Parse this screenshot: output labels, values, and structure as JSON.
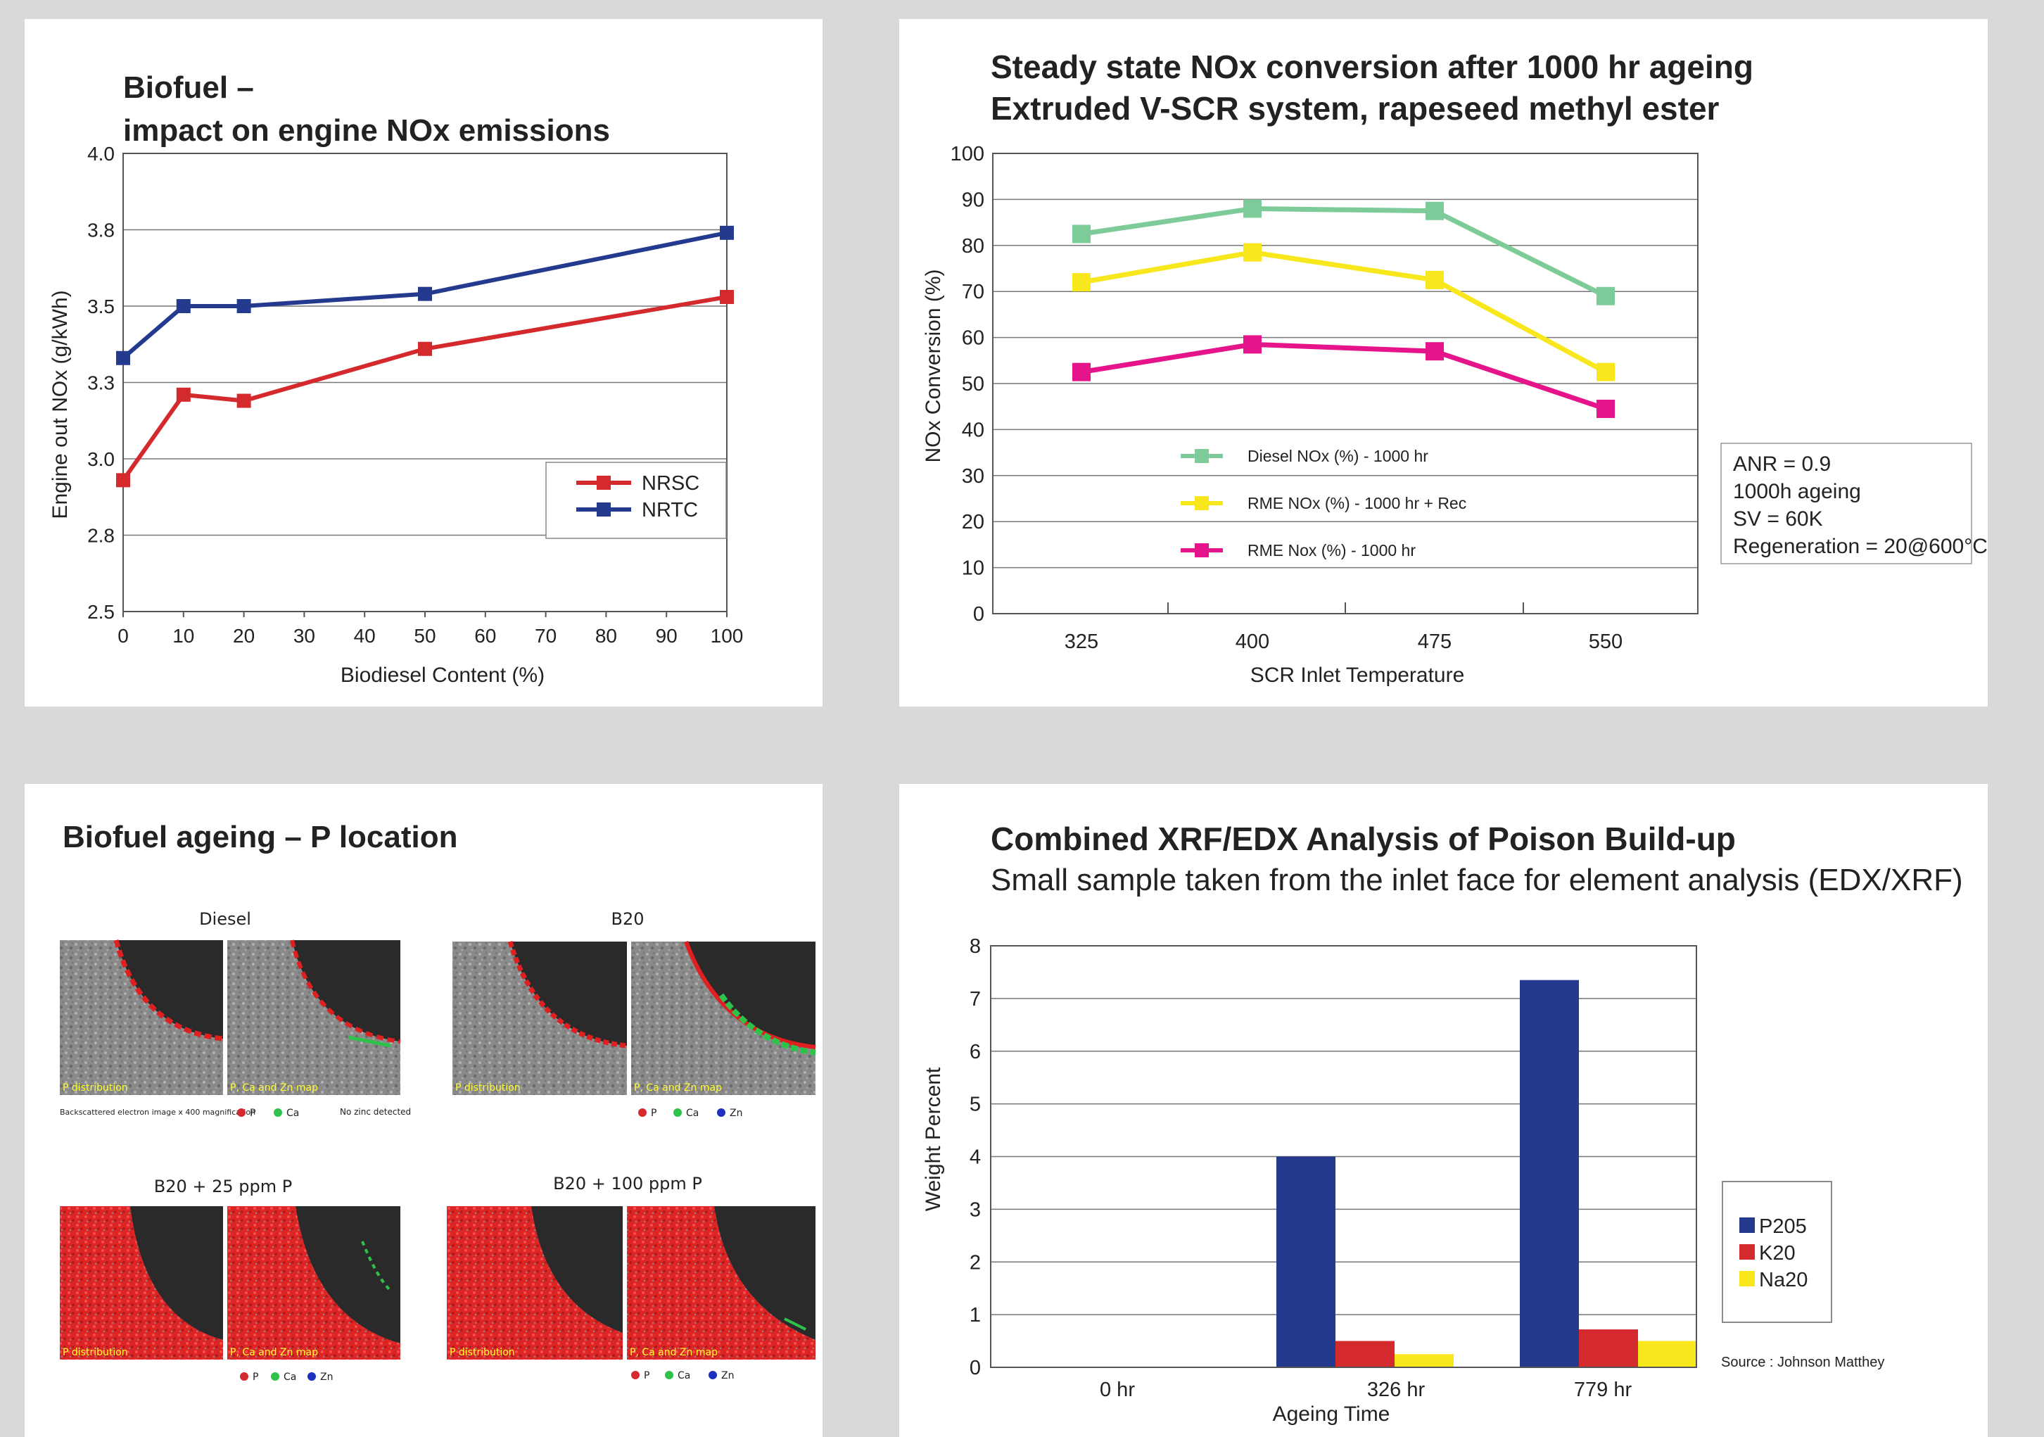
{
  "chart_data": [
    {
      "type": "line",
      "title": "Biofuel –",
      "subtitle": "impact on engine NOx emissions",
      "xlabel": "Biodiesel Content (%)",
      "ylabel": "Engine out NOx (g/kWh)",
      "xlim": [
        0,
        100
      ],
      "ylim": [
        2.5,
        4.0
      ],
      "xticks": [
        "0",
        "10",
        "20",
        "30",
        "40",
        "50",
        "60",
        "70",
        "80",
        "90",
        "100"
      ],
      "yticks": [
        "4.0",
        "3.8",
        "3.5",
        "3.3",
        "3.0",
        "2.8",
        "2.5"
      ],
      "grid": true,
      "legend": "bottom-right",
      "series": [
        {
          "name": "NRSC",
          "color": "#d42a2e",
          "x": [
            0,
            10,
            20,
            50,
            100
          ],
          "y": [
            2.93,
            3.21,
            3.19,
            3.36,
            3.53
          ]
        },
        {
          "name": "NRTC",
          "color": "#243a8f",
          "x": [
            0,
            10,
            20,
            50,
            100
          ],
          "y": [
            3.33,
            3.5,
            3.5,
            3.54,
            3.74
          ]
        }
      ]
    },
    {
      "type": "line",
      "title": "Steady state NOx conversion after 1000 hr ageing",
      "subtitle": "Extruded V-SCR system, rapeseed methyl ester",
      "xlabel": "SCR Inlet Temperature",
      "ylabel": "NOx Conversion (%)",
      "categories": [
        "325",
        "400",
        "475",
        "550"
      ],
      "ylim": [
        0,
        100
      ],
      "yticks": [
        "100",
        "90",
        "80",
        "70",
        "60",
        "50",
        "40",
        "30",
        "20",
        "10",
        "0"
      ],
      "grid": true,
      "legend": "inside-lower-left",
      "series": [
        {
          "name": "Diesel NOx (%) - 1000 hr",
          "color": "#7ecb9a",
          "values": [
            82.5,
            88,
            87.5,
            69
          ]
        },
        {
          "name": "RME NOx (%) - 1000 hr + Rec",
          "color": "#f8e71c",
          "values": [
            72,
            78.5,
            72.5,
            52.5
          ]
        },
        {
          "name": "RME Nox (%) - 1000 hr",
          "color": "#e5148a",
          "values": [
            52.5,
            58.5,
            57,
            44.5
          ]
        }
      ],
      "annotation": [
        "ANR = 0.9",
        "1000h ageing",
        "SV = 60K",
        "Regeneration = 20@600°C"
      ]
    },
    {
      "type": "bar",
      "title": "Combined XRF/EDX Analysis of Poison Build-up",
      "subtitle": "Small sample taken from the inlet face for element analysis (EDX/XRF)",
      "xlabel": "Ageing Time",
      "ylabel": "Weight Percent",
      "categories": [
        "0 hr",
        "326 hr",
        "779 hr"
      ],
      "ylim": [
        0,
        8
      ],
      "yticks": [
        "8",
        "7",
        "6",
        "5",
        "4",
        "3",
        "2",
        "1",
        "0"
      ],
      "grid": true,
      "legend": "right",
      "series": [
        {
          "name": "P205",
          "color": "#243a8f",
          "values": [
            0,
            4,
            7.35
          ]
        },
        {
          "name": "K20",
          "color": "#d42a2e",
          "values": [
            0,
            0.5,
            0.72
          ]
        },
        {
          "name": "Na20",
          "color": "#f8e71c",
          "values": [
            0,
            0.25,
            0.5
          ]
        }
      ],
      "source": "Source : Johnson Matthey"
    }
  ],
  "micrographs": {
    "title": "Biofuel ageing – P location",
    "groups": [
      {
        "label": "Diesel",
        "left_tag": "P distribution",
        "right_tag": "P, Ca and Zn map",
        "caption_left": "Backscattered electron image x 400 magnification",
        "legend": [
          {
            "sym": "P",
            "color": "#d42a2e"
          },
          {
            "sym": "Ca",
            "color": "#2ec24a"
          }
        ],
        "note": "No zinc detected"
      },
      {
        "label": "B20",
        "left_tag": "P distribution",
        "right_tag": "P, Ca and Zn map",
        "legend": [
          {
            "sym": "P",
            "color": "#d42a2e"
          },
          {
            "sym": "Ca",
            "color": "#2ec24a"
          },
          {
            "sym": "Zn",
            "color": "#1c2fbf"
          }
        ]
      },
      {
        "label": "B20 + 25 ppm P",
        "left_tag": "P distribution",
        "right_tag": "P, Ca and Zn map",
        "legend": [
          {
            "sym": "P",
            "color": "#d42a2e"
          },
          {
            "sym": "Ca",
            "color": "#2ec24a"
          },
          {
            "sym": "Zn",
            "color": "#1c2fbf"
          }
        ]
      },
      {
        "label": "B20 + 100 ppm P",
        "left_tag": "P distribution",
        "right_tag": "P, Ca and Zn map",
        "legend": [
          {
            "sym": "P",
            "color": "#d42a2e"
          },
          {
            "sym": "Ca",
            "color": "#2ec24a"
          },
          {
            "sym": "Zn",
            "color": "#1c2fbf"
          }
        ]
      }
    ]
  }
}
